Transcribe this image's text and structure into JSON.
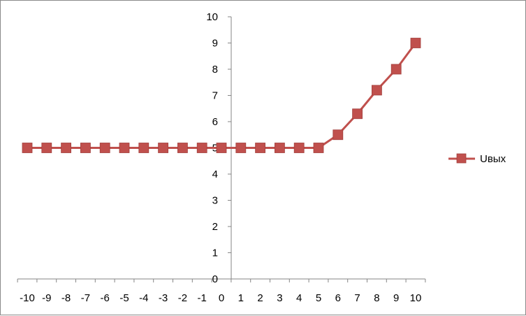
{
  "chart_data": {
    "type": "line",
    "title": "",
    "xlabel": "",
    "ylabel": "",
    "x": [
      -10,
      -9,
      -8,
      -7,
      -6,
      -5,
      -4,
      -3,
      -2,
      -1,
      0,
      1,
      2,
      3,
      4,
      5,
      6,
      7,
      8,
      9,
      10
    ],
    "x_tick_labels": [
      "-10",
      "-9",
      "-8",
      "-7",
      "-6",
      "-5",
      "-4",
      "-3",
      "-2",
      "-1",
      "0",
      "1",
      "2",
      "3",
      "4",
      "5",
      "6",
      "7",
      "8",
      "9",
      "10"
    ],
    "y_tick_labels": [
      "0",
      "1",
      "2",
      "3",
      "4",
      "5",
      "6",
      "7",
      "8",
      "9",
      "10"
    ],
    "xlim": [
      -10,
      10
    ],
    "ylim": [
      0,
      10
    ],
    "y_ticks": [
      0,
      1,
      2,
      3,
      4,
      5,
      6,
      7,
      8,
      9,
      10
    ],
    "grid": false,
    "legend_position": "right",
    "series": [
      {
        "name": "Uвых",
        "color": "#c0504d",
        "marker": "square",
        "values": [
          5,
          5,
          5,
          5,
          5,
          5,
          5,
          5,
          5,
          5,
          5,
          5,
          5,
          5,
          5,
          5,
          5.5,
          6.3,
          7.2,
          8,
          9
        ]
      }
    ]
  }
}
